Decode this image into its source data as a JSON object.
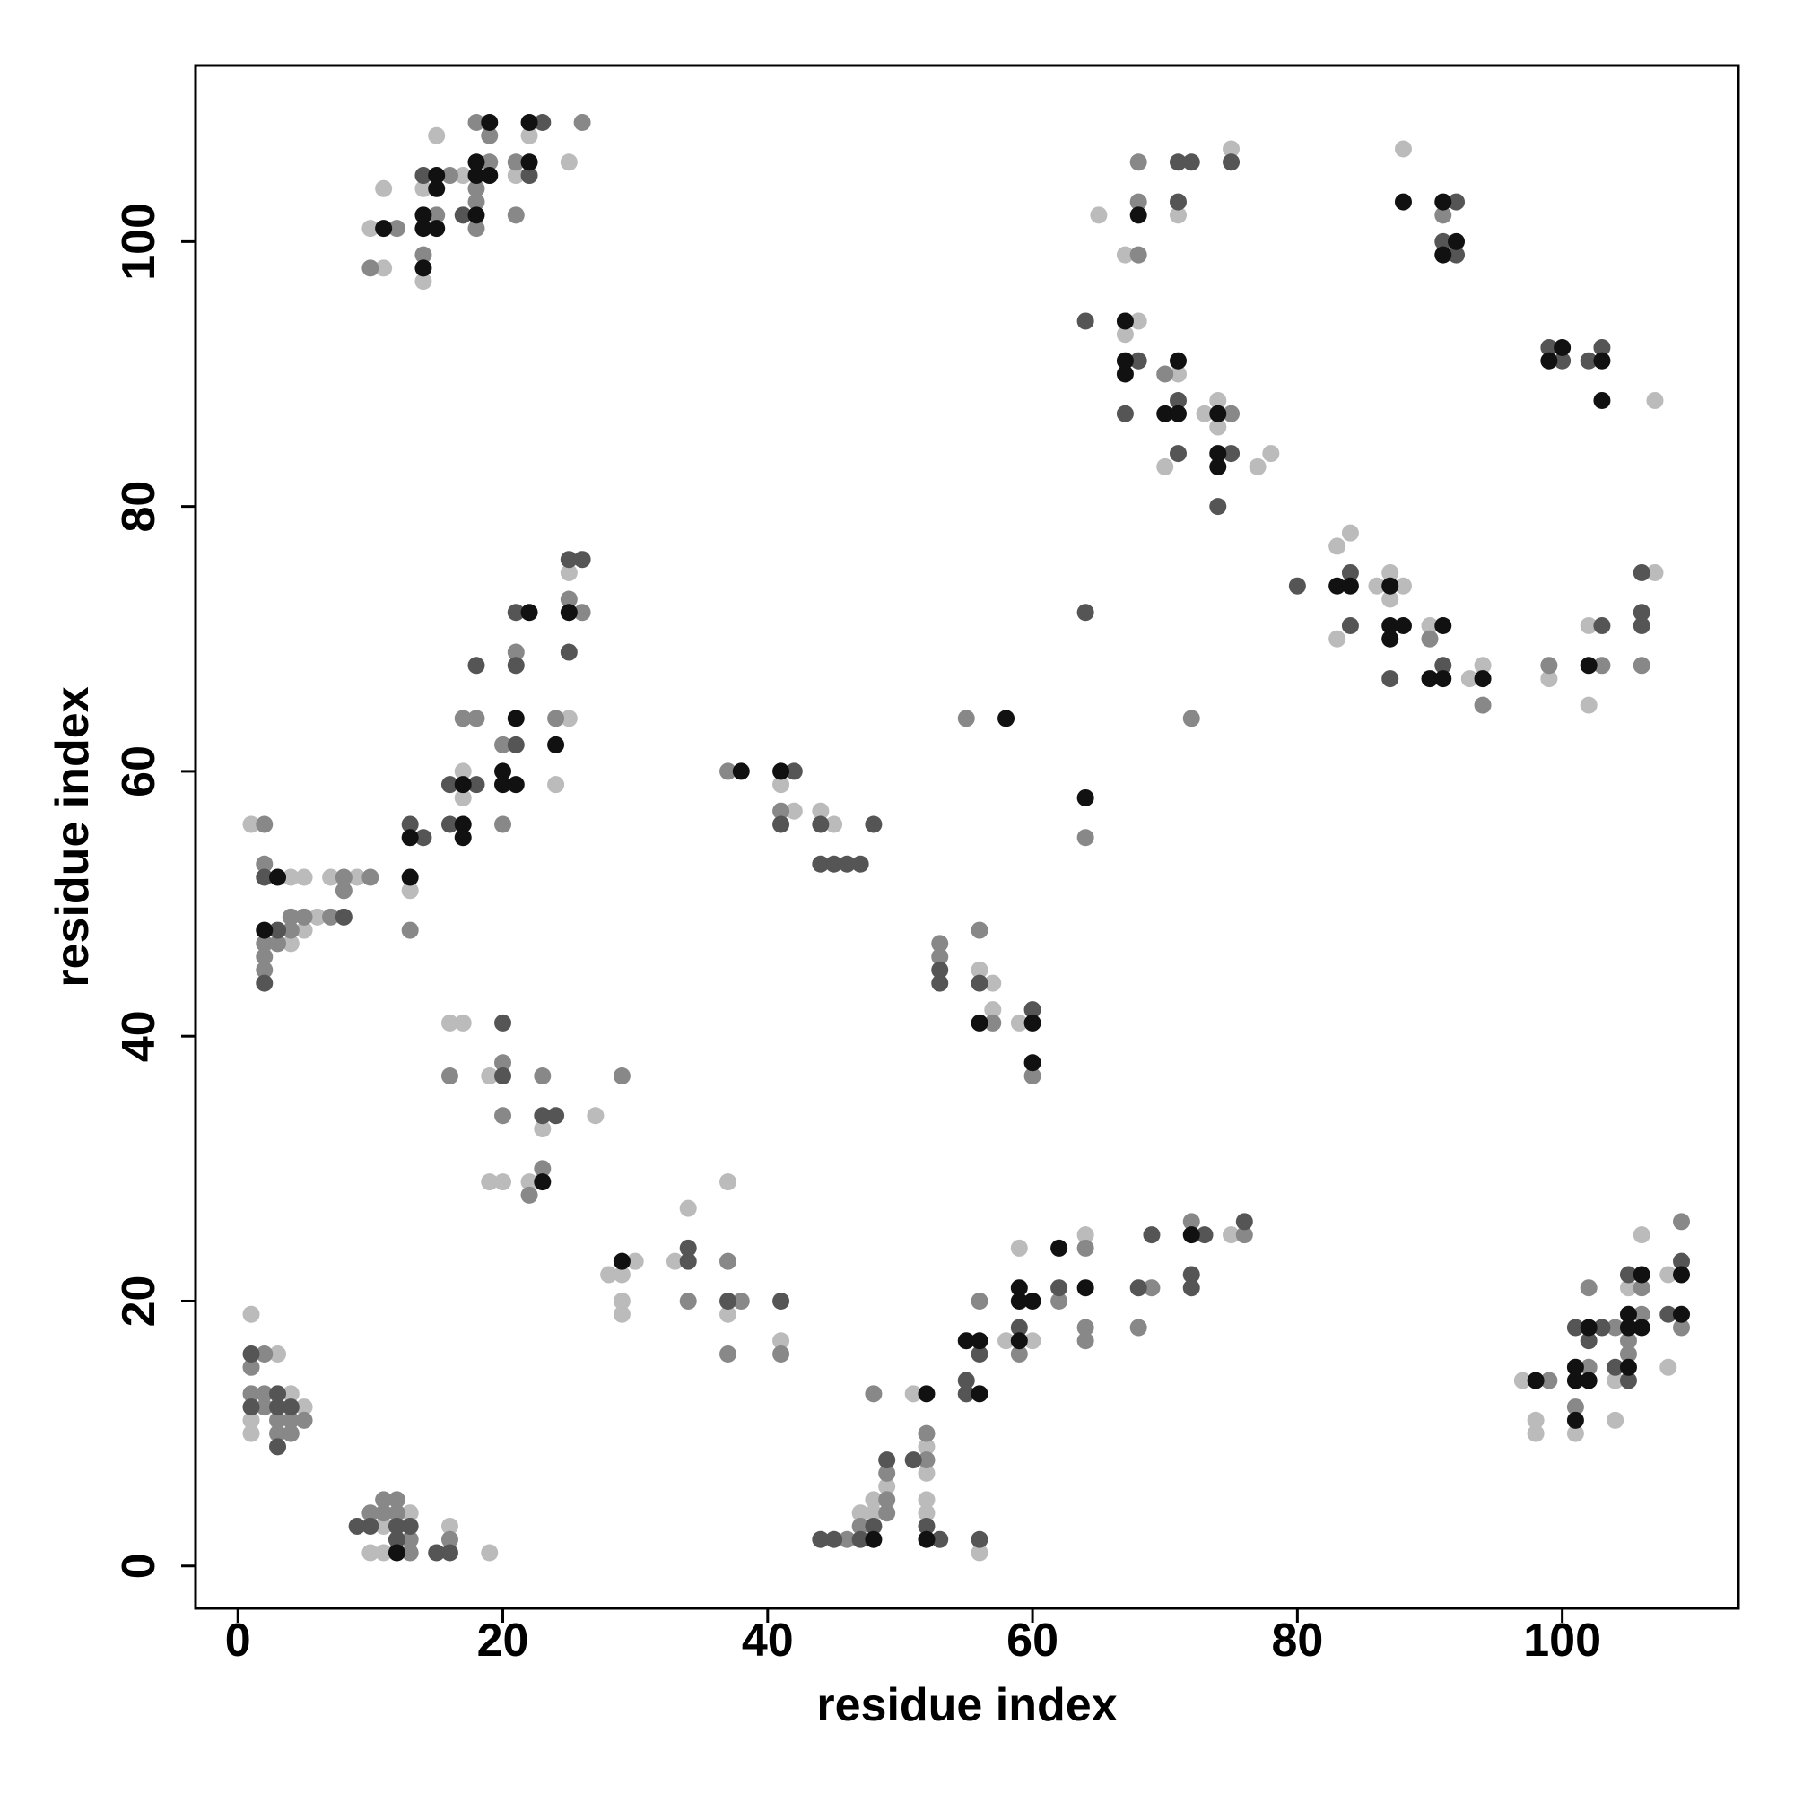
{
  "chart_data": {
    "type": "scatter",
    "x_label": "residue index",
    "y_label": "residue index",
    "xlim": [
      -3.2,
      113.3
    ],
    "ylim": [
      -3.2,
      113.3
    ],
    "xticks": [
      0,
      20,
      40,
      60,
      80,
      100
    ],
    "yticks": [
      0,
      20,
      40,
      60,
      80,
      100
    ],
    "grid": false,
    "series": [
      {
        "color": "#bbbbbb",
        "x": [
          1,
          3,
          4,
          5,
          1,
          1,
          13,
          11,
          10,
          11,
          16,
          19,
          47,
          48,
          48,
          49,
          52,
          52,
          51,
          52,
          52,
          56,
          58,
          60,
          59,
          64,
          75,
          97,
          98,
          98,
          101,
          104,
          104,
          105,
          106,
          108,
          108,
          28,
          29,
          30,
          29,
          29,
          33,
          34,
          37,
          37,
          41,
          16,
          17,
          19,
          27,
          23,
          19,
          20,
          22,
          1,
          4,
          5,
          7,
          9,
          6,
          4,
          5,
          13,
          17,
          17,
          24,
          25,
          25,
          41,
          42,
          44,
          45,
          56,
          57,
          57,
          59,
          10,
          11,
          11,
          14,
          14,
          15,
          17,
          21,
          22,
          25,
          65,
          68,
          67,
          67,
          71,
          75,
          71,
          70,
          73,
          74,
          74,
          77,
          78,
          88,
          107,
          83,
          84,
          83,
          86,
          87,
          87,
          88,
          90,
          93,
          94,
          99,
          102,
          102,
          107
        ],
        "y": [
          19,
          16,
          13,
          12,
          11,
          10,
          4,
          3,
          1,
          1,
          3,
          1,
          4,
          4,
          5,
          6,
          7,
          9,
          13,
          5,
          4,
          1,
          17,
          17,
          24,
          25,
          25,
          14,
          11,
          10,
          10,
          14,
          11,
          21,
          25,
          22,
          15,
          22,
          22,
          23,
          20,
          19,
          23,
          27,
          29,
          19,
          17,
          41,
          41,
          37,
          34,
          33,
          29,
          29,
          29,
          56,
          52,
          52,
          52,
          52,
          49,
          47,
          48,
          51,
          58,
          60,
          59,
          64,
          75,
          59,
          57,
          57,
          56,
          45,
          44,
          42,
          41,
          101,
          98,
          104,
          97,
          104,
          108,
          105,
          105,
          108,
          106,
          102,
          94,
          93,
          99,
          102,
          107,
          90,
          83,
          87,
          88,
          86,
          83,
          84,
          107,
          88,
          77,
          78,
          70,
          74,
          75,
          73,
          74,
          71,
          67,
          68,
          67,
          71,
          65,
          75
        ]
      },
      {
        "color": "#888888",
        "x": [
          2,
          1,
          1,
          2,
          2,
          3,
          4,
          5,
          3,
          4,
          10,
          11,
          11,
          12,
          12,
          13,
          13,
          16,
          46,
          47,
          49,
          49,
          49,
          52,
          52,
          48,
          56,
          59,
          62,
          64,
          64,
          64,
          69,
          68,
          72,
          76,
          99,
          102,
          101,
          102,
          104,
          105,
          105,
          106,
          106,
          109,
          109,
          29,
          34,
          37,
          38,
          37,
          41,
          16,
          20,
          20,
          23,
          23,
          22,
          2,
          2,
          8,
          10,
          8,
          4,
          5,
          7,
          2,
          3,
          4,
          2,
          2,
          13,
          17,
          18,
          20,
          20,
          21,
          24,
          26,
          25,
          37,
          41,
          53,
          53,
          56,
          57,
          60,
          55,
          64,
          72,
          10,
          12,
          14,
          15,
          16,
          18,
          18,
          18,
          18,
          19,
          19,
          21,
          21,
          26,
          68,
          68,
          68,
          70,
          75,
          91,
          90,
          94,
          99,
          103,
          106
        ],
        "y": [
          16,
          15,
          13,
          13,
          12,
          11,
          11,
          11,
          10,
          10,
          4,
          5,
          4,
          5,
          4,
          2,
          1,
          2,
          2,
          3,
          4,
          5,
          7,
          8,
          10,
          13,
          20,
          16,
          20,
          18,
          17,
          24,
          21,
          18,
          26,
          25,
          14,
          15,
          12,
          21,
          18,
          17,
          16,
          19,
          21,
          18,
          26,
          37,
          20,
          23,
          20,
          16,
          16,
          37,
          38,
          34,
          37,
          30,
          28,
          56,
          53,
          52,
          52,
          51,
          49,
          49,
          49,
          47,
          47,
          48,
          46,
          45,
          48,
          64,
          64,
          56,
          62,
          69,
          64,
          72,
          73,
          60,
          57,
          47,
          46,
          48,
          41,
          37,
          64,
          55,
          64,
          98,
          101,
          99,
          102,
          105,
          101,
          103,
          104,
          109,
          106,
          108,
          106,
          102,
          109,
          99,
          103,
          106,
          90,
          87,
          102,
          70,
          65,
          68,
          68,
          68
        ]
      },
      {
        "color": "#555555",
        "x": [
          1,
          3,
          1,
          3,
          4,
          3,
          9,
          10,
          12,
          13,
          12,
          15,
          16,
          44,
          45,
          47,
          48,
          49,
          51,
          52,
          53,
          56,
          55,
          55,
          56,
          59,
          62,
          68,
          69,
          73,
          72,
          72,
          76,
          101,
          102,
          104,
          105,
          105,
          108,
          109,
          103,
          37,
          41,
          34,
          34,
          20,
          20,
          23,
          24,
          2,
          8,
          3,
          2,
          13,
          14,
          16,
          16,
          18,
          18,
          21,
          21,
          21,
          25,
          25,
          26,
          42,
          41,
          44,
          48,
          44,
          45,
          46,
          47,
          53,
          53,
          56,
          60,
          64,
          14,
          17,
          22,
          23,
          64,
          71,
          71,
          72,
          75,
          68,
          67,
          71,
          71,
          75,
          74,
          92,
          91,
          92,
          99,
          100,
          102,
          103,
          80,
          84,
          84,
          87,
          91,
          103,
          106,
          106,
          106
        ],
        "y": [
          16,
          13,
          12,
          12,
          12,
          9,
          3,
          3,
          3,
          3,
          2,
          1,
          1,
          2,
          2,
          2,
          3,
          8,
          8,
          3,
          2,
          2,
          14,
          13,
          16,
          18,
          21,
          21,
          25,
          25,
          22,
          21,
          26,
          18,
          17,
          15,
          22,
          14,
          19,
          23,
          18,
          20,
          20,
          23,
          24,
          37,
          41,
          34,
          34,
          52,
          49,
          48,
          44,
          56,
          55,
          56,
          59,
          59,
          68,
          62,
          68,
          72,
          69,
          76,
          76,
          60,
          56,
          56,
          56,
          53,
          53,
          53,
          53,
          45,
          44,
          44,
          42,
          72,
          105,
          102,
          105,
          109,
          94,
          103,
          106,
          106,
          106,
          91,
          87,
          88,
          84,
          84,
          80,
          103,
          100,
          99,
          92,
          91,
          91,
          92,
          74,
          75,
          71,
          67,
          68,
          71,
          75,
          72,
          71
        ]
      },
      {
        "color": "#111111",
        "x": [
          12,
          48,
          52,
          52,
          55,
          56,
          56,
          59,
          59,
          59,
          60,
          62,
          64,
          72,
          102,
          101,
          101,
          102,
          101,
          105,
          105,
          105,
          106,
          106,
          109,
          109,
          29,
          23,
          3,
          2,
          13,
          13,
          17,
          17,
          17,
          20,
          21,
          20,
          21,
          22,
          24,
          25,
          38,
          41,
          56,
          60,
          60,
          58,
          64,
          11,
          14,
          14,
          14,
          15,
          15,
          15,
          18,
          18,
          18,
          19,
          19,
          22,
          22,
          67,
          68,
          67,
          67,
          71,
          70,
          71,
          74,
          74,
          74,
          88,
          91,
          92,
          91,
          100,
          99,
          103,
          103,
          83,
          84,
          87,
          87,
          88,
          87,
          91,
          90,
          91,
          94,
          102,
          98
        ],
        "y": [
          1,
          2,
          13,
          2,
          17,
          17,
          13,
          17,
          20,
          21,
          20,
          24,
          21,
          25,
          18,
          15,
          14,
          14,
          11,
          18,
          19,
          15,
          22,
          18,
          22,
          19,
          23,
          29,
          52,
          48,
          52,
          55,
          56,
          55,
          59,
          59,
          59,
          60,
          64,
          72,
          62,
          72,
          60,
          60,
          41,
          41,
          38,
          64,
          58,
          101,
          98,
          101,
          102,
          105,
          104,
          101,
          102,
          105,
          106,
          109,
          105,
          106,
          109,
          94,
          102,
          91,
          90,
          91,
          87,
          87,
          87,
          84,
          83,
          103,
          103,
          100,
          99,
          92,
          91,
          91,
          88,
          74,
          74,
          74,
          71,
          71,
          70,
          71,
          67,
          67,
          67,
          68,
          14
        ]
      }
    ]
  }
}
